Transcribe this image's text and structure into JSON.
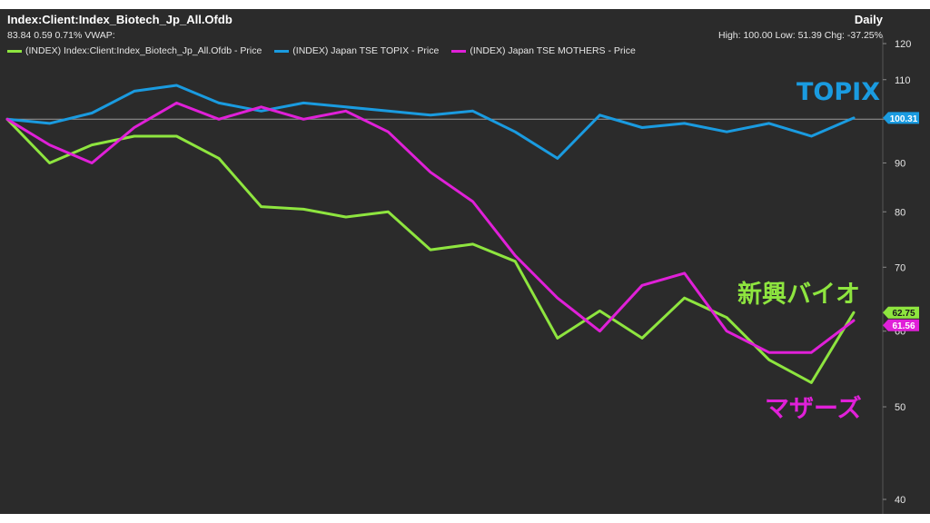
{
  "header": {
    "title": "Index:Client:Index_Biotech_Jp_All.Ofdb",
    "subtitle": "83.84  0.59  0.71%   VWAP:",
    "period": "Daily",
    "stats": "High: 100.00  Low: 51.39  Chg: -37.25%"
  },
  "legend": [
    {
      "label": "(INDEX) Index:Client:Index_Biotech_Jp_All.Ofdb - Price",
      "color": "#8ee53f"
    },
    {
      "label": "(INDEX) Japan TSE TOPIX - Price",
      "color": "#1a9be0"
    },
    {
      "label": "(INDEX) Japan TSE MOTHERS - Price",
      "color": "#e020d8"
    }
  ],
  "annotations": {
    "topix": {
      "text": "TOPIX",
      "color": "#1a9be0"
    },
    "biotech": {
      "text": "新興バイオ",
      "color": "#8ee53f"
    },
    "mothers": {
      "text": "マザーズ",
      "color": "#e020d8"
    }
  },
  "chart_data": {
    "type": "line",
    "y_scale": "log",
    "ylim": [
      40,
      120
    ],
    "yticks": [
      40,
      50,
      60,
      70,
      80,
      90,
      100,
      110,
      120
    ],
    "grid": false,
    "reference_line": 100,
    "x": [
      0,
      5,
      10,
      15,
      20,
      25,
      30,
      35,
      40,
      45,
      50,
      55,
      60,
      65,
      70,
      75,
      80,
      85,
      90,
      95,
      100
    ],
    "series": [
      {
        "name": "(INDEX) Index:Client:Index_Biotech_Jp_All.Ofdb - Price",
        "color": "#8ee53f",
        "last_label": "62.75",
        "values": [
          100,
          90,
          94,
          96,
          96,
          91,
          81,
          80.5,
          79,
          80,
          73,
          74,
          71,
          59,
          63,
          59,
          65,
          62,
          56,
          53,
          62.75
        ]
      },
      {
        "name": "(INDEX) Japan TSE TOPIX - Price",
        "color": "#1a9be0",
        "last_label": "100.31",
        "values": [
          100,
          99,
          101.5,
          107,
          108.5,
          104,
          102,
          104,
          103,
          102,
          101,
          102,
          97,
          91,
          101,
          98,
          99,
          97,
          99,
          96,
          100.31
        ]
      },
      {
        "name": "(INDEX) Japan TSE MOTHERS - Price",
        "color": "#e020d8",
        "last_label": "61.56",
        "values": [
          100,
          94,
          90,
          98,
          104,
          100,
          103,
          100,
          102,
          97,
          88,
          82,
          72,
          65,
          60,
          67,
          69,
          60,
          57,
          57,
          61.56
        ]
      }
    ]
  }
}
